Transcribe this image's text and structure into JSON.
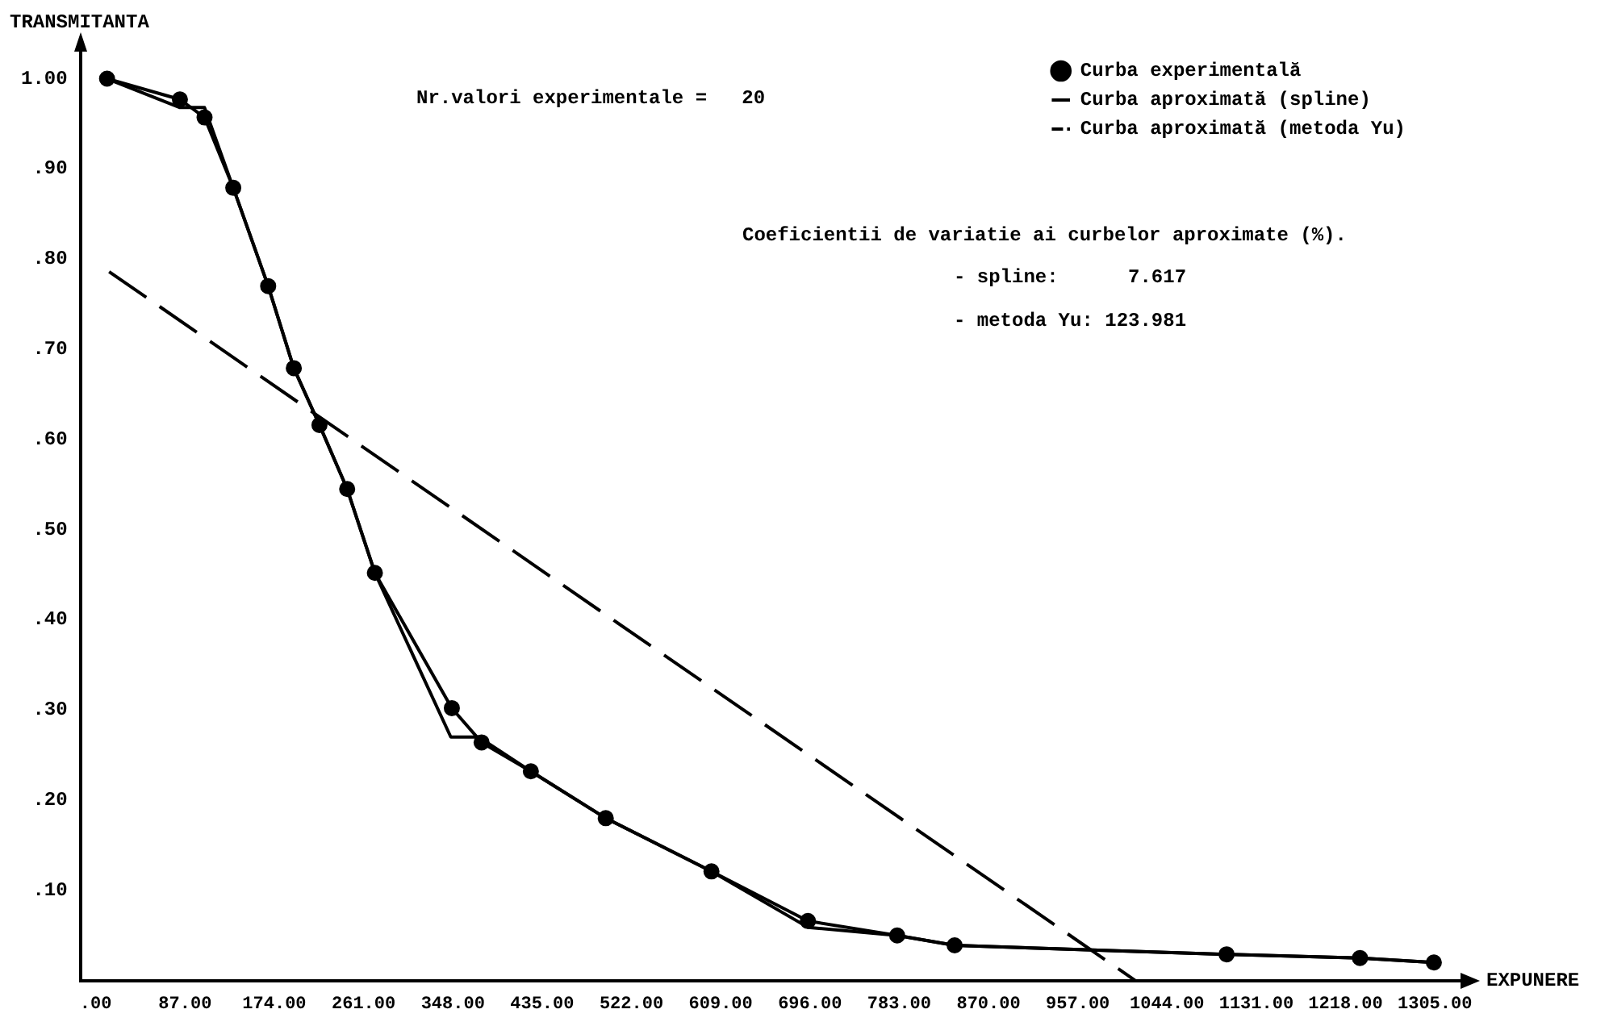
{
  "chart_data": {
    "type": "line",
    "xlabel": "EXPUNERE",
    "ylabel": "TRANSMITANTA",
    "xlim": [
      -15,
      1330
    ],
    "ylim": [
      0,
      1.03
    ],
    "xticks": [
      {
        "value": 0,
        "label": ".00"
      },
      {
        "value": 87,
        "label": "87.00"
      },
      {
        "value": 174,
        "label": "174.00"
      },
      {
        "value": 261,
        "label": "261.00"
      },
      {
        "value": 348,
        "label": "348.00"
      },
      {
        "value": 435,
        "label": "435.00"
      },
      {
        "value": 522,
        "label": "522.00"
      },
      {
        "value": 609,
        "label": "609.00"
      },
      {
        "value": 696,
        "label": "696.00"
      },
      {
        "value": 783,
        "label": "783.00"
      },
      {
        "value": 870,
        "label": "870.00"
      },
      {
        "value": 957,
        "label": "957.00"
      },
      {
        "value": 1044,
        "label": "1044.00"
      },
      {
        "value": 1131,
        "label": "1131.00"
      },
      {
        "value": 1218,
        "label": "1218.00"
      },
      {
        "value": 1305,
        "label": "1305.00"
      }
    ],
    "yticks": [
      {
        "value": 0,
        "label": null
      },
      {
        "value": 0.1,
        "label": ".10"
      },
      {
        "value": 0.2,
        "label": ".20"
      },
      {
        "value": 0.3,
        "label": ".30"
      },
      {
        "value": 0.4,
        "label": ".40"
      },
      {
        "value": 0.5,
        "label": ".50"
      },
      {
        "value": 0.6,
        "label": ".60"
      },
      {
        "value": 0.7,
        "label": ".70"
      },
      {
        "value": 0.8,
        "label": ".80"
      },
      {
        "value": 0.9,
        "label": ".90"
      },
      {
        "value": 1,
        "label": "1.00"
      }
    ],
    "grid": false,
    "legend": "top right",
    "series": [
      {
        "name": "Curba experimentală",
        "color": "#000000",
        "marker": "circle",
        "line_style": "solid",
        "x": [
          11,
          82,
          106,
          134,
          168,
          193,
          218,
          245,
          272,
          347,
          376,
          424,
          497,
          600,
          694,
          781,
          837,
          1102,
          1232,
          1304
        ],
        "values": [
          1.0,
          0.977,
          0.957,
          0.879,
          0.77,
          0.679,
          0.616,
          0.545,
          0.452,
          0.302,
          0.264,
          0.232,
          0.18,
          0.121,
          0.066,
          0.05,
          0.039,
          0.029,
          0.025,
          0.02
        ]
      },
      {
        "name": "Curba aproximată (spline)",
        "color": "#000000",
        "marker": "none",
        "line_style": "solid",
        "x": [
          11,
          82,
          106,
          134,
          168,
          193,
          218,
          245,
          272,
          346,
          373,
          424,
          497,
          600,
          694,
          781,
          837,
          1102,
          1232,
          1304
        ],
        "values": [
          1.0,
          0.968,
          0.968,
          0.879,
          0.77,
          0.679,
          0.616,
          0.545,
          0.452,
          0.27,
          0.27,
          0.232,
          0.18,
          0.121,
          0.059,
          0.05,
          0.039,
          0.029,
          0.025,
          0.02
        ]
      },
      {
        "name": "Curba aproximată (metoda Yu)",
        "color": "#000000",
        "marker": "none",
        "line_style": "dashed",
        "x": [
          13,
          1013
        ],
        "values": [
          0.786,
          0
        ]
      }
    ],
    "annotations": [
      "Nr.valori experimentale =   20",
      "Coeficientii de variatie ai curbelor aproximate (%).",
      "- spline:      7.617",
      "- metoda Yu: 123.981"
    ]
  }
}
